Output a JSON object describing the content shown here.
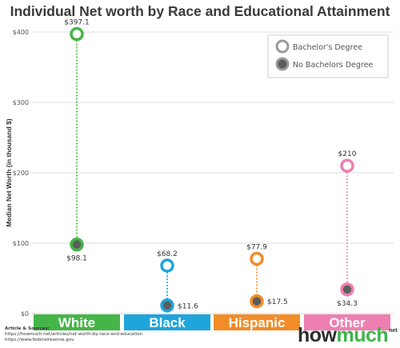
{
  "chart_data": {
    "type": "dot",
    "title": "Individual Net worth by Race and Educational Attainment",
    "ylabel": "Median Net Worth (in thousand $)",
    "ylim": [
      0,
      400
    ],
    "yticks": [
      "$0",
      "$100",
      "$200",
      "$300",
      "$400"
    ],
    "categories": [
      "White",
      "Black",
      "Hispanic",
      "Other"
    ],
    "category_colors": [
      "#46b549",
      "#1ea5dc",
      "#f28c28",
      "#ee7fb1"
    ],
    "series": [
      {
        "name": "Bachelor's Degree",
        "values": [
          397.1,
          68.2,
          77.9,
          210
        ],
        "labels": [
          "$397.1",
          "$68.2",
          "$77.9",
          "$210"
        ]
      },
      {
        "name": "No Bachelors Degree",
        "values": [
          98.1,
          11.6,
          17.5,
          34.3
        ],
        "labels": [
          "$98.1",
          "$11.6",
          "$17.5",
          "$34.3"
        ]
      }
    ],
    "legend": "top-right",
    "grid": true
  },
  "sources": {
    "heading": "Article & Sources:",
    "lines": [
      "https://howmuch.net/articles/net-worth-by-race-and-education",
      "https://www.federalreserve.gov"
    ]
  },
  "brand": {
    "part1": "how",
    "part2": "much",
    "suffix": "net"
  }
}
